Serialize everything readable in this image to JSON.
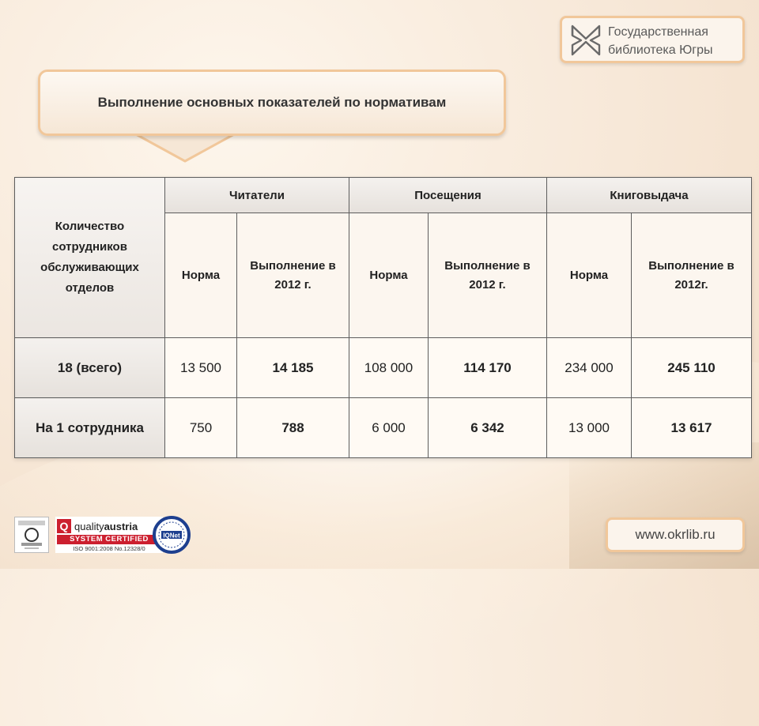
{
  "logo": {
    "line1": "Государственная",
    "line2": "библиотека Югры"
  },
  "title": "Выполнение основных показателей по нормативам",
  "table": {
    "corner_label": "Количество сотрудников обслуживающих отделов",
    "groups": [
      "Читатели",
      "Посещения",
      "Книговыдача"
    ],
    "subheaders": [
      "Норма",
      "Выполнение в 2012 г.",
      "Норма",
      "Выполнение в 2012 г.",
      "Норма",
      "Выполнение в 2012г."
    ],
    "rows": [
      {
        "label": "18 (всего)",
        "values": [
          "13 500",
          "14 185",
          "108 000",
          "114 170",
          "234 000",
          "245 110"
        ]
      },
      {
        "label": "На 1 сотрудника",
        "values": [
          "750",
          "788",
          "6 000",
          "6 342",
          "13 000",
          "13 617"
        ]
      }
    ]
  },
  "certs": {
    "quality_brand": "quality",
    "quality_brand_bold": "austria",
    "system": "SYSTEM CERTIFIED",
    "iso": "ISO 9001:2008    No.12328/0",
    "iqnet": "IQNet"
  },
  "website": "www.okrlib.ru",
  "colors": {
    "accent_border": "#f1c79a",
    "table_border": "#5d5d5d",
    "qa_red": "#cc1f2f"
  }
}
